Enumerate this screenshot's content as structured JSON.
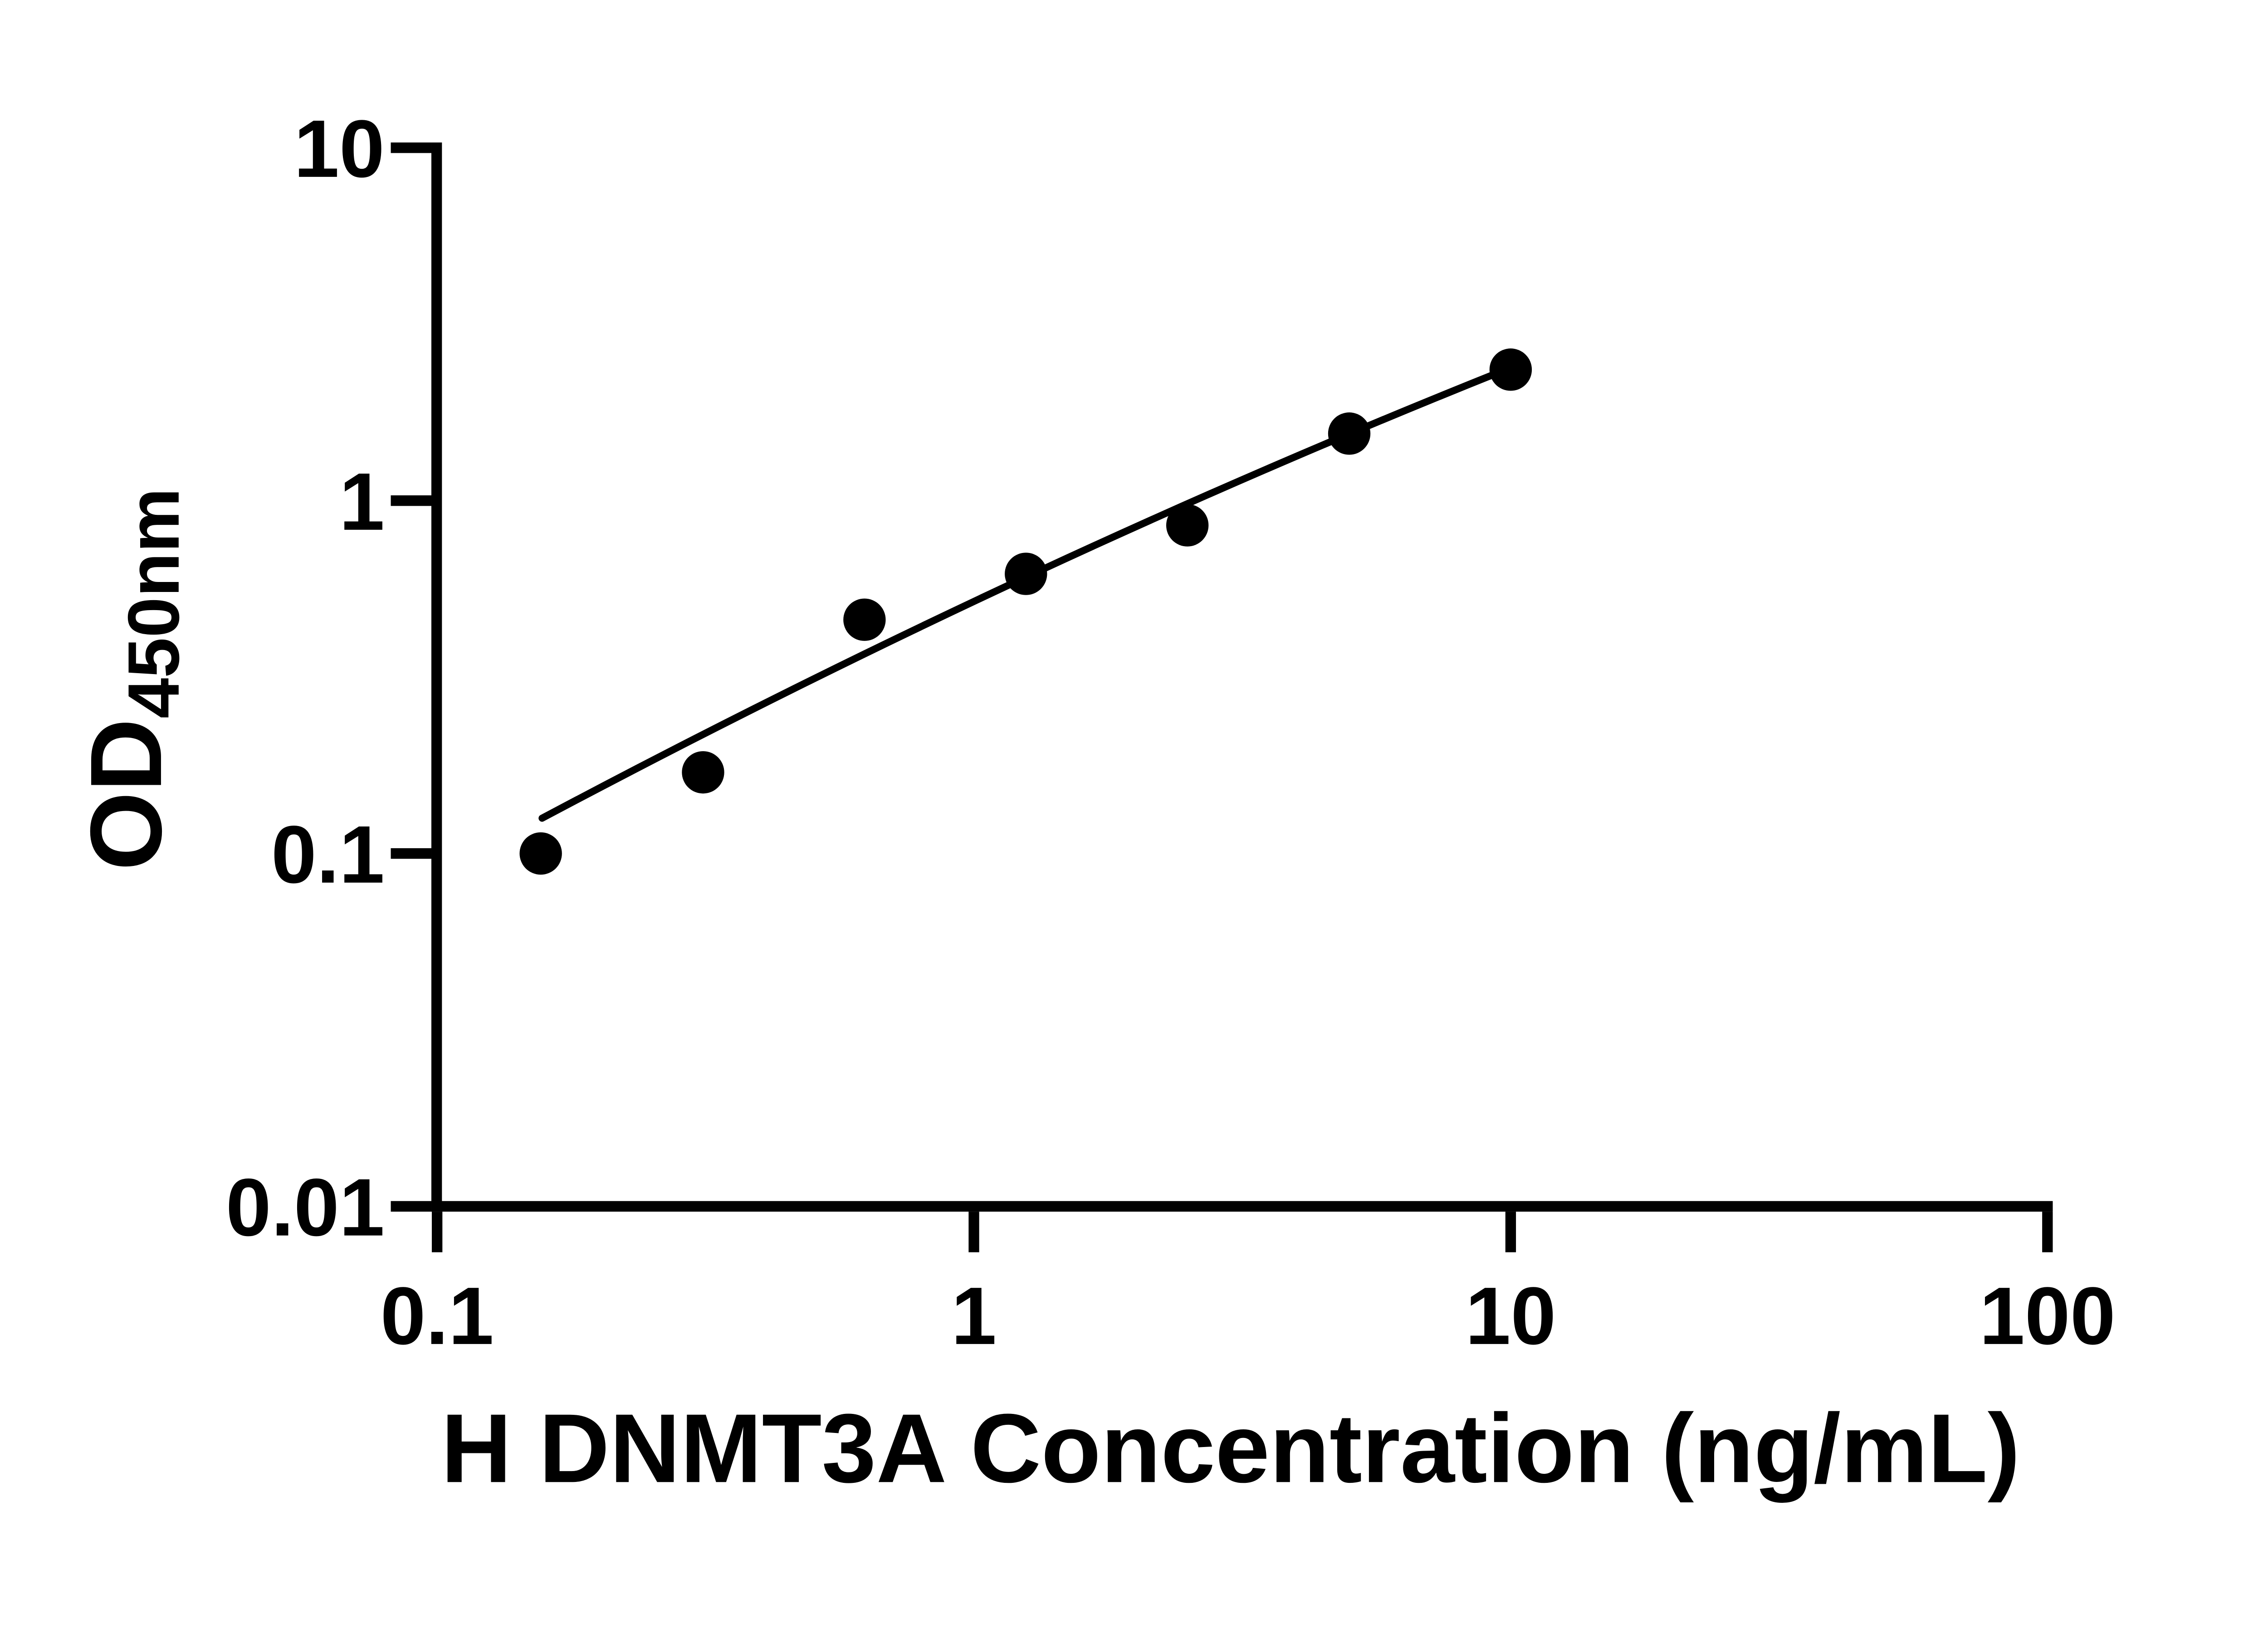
{
  "chart_data": {
    "type": "scatter",
    "title": "",
    "xlabel": "H DNMT3A Concentration (ng/mL)",
    "ylabel_main": "OD",
    "ylabel_sub": "450nm",
    "x_scale": "log",
    "y_scale": "log",
    "xlim": [
      0.1,
      100
    ],
    "ylim": [
      0.01,
      10
    ],
    "grid": false,
    "legend": null,
    "marker": "filled-circle",
    "x": [
      0.156,
      0.313,
      0.625,
      1.25,
      2.5,
      5,
      10
    ],
    "y": [
      0.1,
      0.17,
      0.46,
      0.62,
      0.85,
      1.55,
      2.35
    ],
    "x_tick_labels": [
      "0.1",
      "1",
      "10",
      "100"
    ],
    "y_tick_labels": [
      "10",
      "1",
      "0.1",
      "0.01"
    ],
    "fit_line": {
      "x_start": 0.157,
      "y_start": 0.126,
      "x_end": 9.8,
      "y_end": 2.35
    },
    "colors": {
      "points": "#000000",
      "line": "#000000",
      "axes": "#000000",
      "text": "#000000",
      "background": "#ffffff"
    }
  }
}
